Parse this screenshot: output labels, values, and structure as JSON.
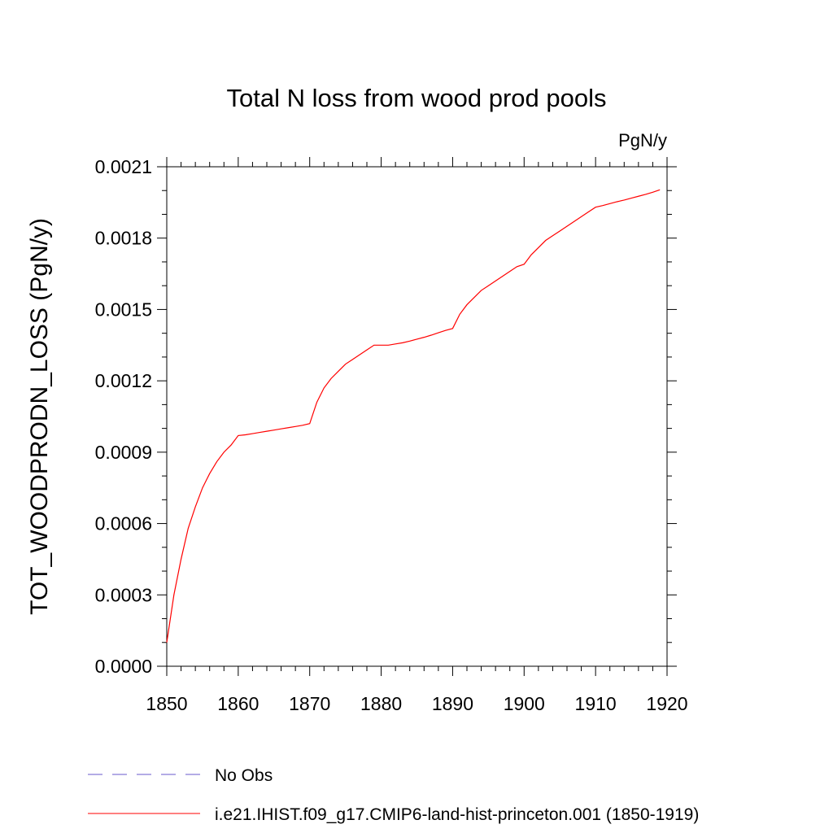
{
  "chart_data": {
    "type": "line",
    "title": "Total N loss from wood prod pools",
    "units_label": "PgN/y",
    "ylabel": "TOT_WOODPRODN_LOSS  (PgN/y)",
    "xlabel": "",
    "xlim": [
      1850,
      1920
    ],
    "ylim": [
      0,
      0.0021
    ],
    "x_ticks": [
      1850,
      1860,
      1870,
      1880,
      1890,
      1900,
      1910,
      1920
    ],
    "y_ticks": [
      "0.0000",
      "0.0003",
      "0.0006",
      "0.0009",
      "0.0012",
      "0.0015",
      "0.0018",
      "0.0021"
    ],
    "grid": false,
    "legend_position": "bottom",
    "legend": [
      {
        "label": "No Obs",
        "color": "#6a5acd",
        "style": "dashed"
      },
      {
        "label": "i.e21.IHIST.f09_g17.CMIP6-land-hist-princeton.001 (1850-1919)",
        "color": "#ff0000",
        "style": "solid"
      }
    ],
    "series": [
      {
        "name": "i.e21.IHIST.f09_g17.CMIP6-land-hist-princeton.001 (1850-1919)",
        "color": "#ff0000",
        "x": [
          1850,
          1851,
          1852,
          1853,
          1854,
          1855,
          1856,
          1857,
          1858,
          1859,
          1860,
          1861,
          1862,
          1863,
          1864,
          1865,
          1866,
          1867,
          1868,
          1869,
          1870,
          1871,
          1872,
          1873,
          1874,
          1875,
          1876,
          1877,
          1878,
          1879,
          1880,
          1881,
          1882,
          1883,
          1884,
          1885,
          1886,
          1887,
          1888,
          1889,
          1890,
          1891,
          1892,
          1893,
          1894,
          1895,
          1896,
          1897,
          1898,
          1899,
          1900,
          1901,
          1902,
          1903,
          1904,
          1905,
          1906,
          1907,
          1908,
          1909,
          1910,
          1911,
          1912,
          1913,
          1914,
          1915,
          1916,
          1917,
          1918,
          1919
        ],
        "values": [
          0.0001,
          0.0003,
          0.00045,
          0.00058,
          0.00067,
          0.00075,
          0.00081,
          0.00086,
          0.0009,
          0.00093,
          0.00097,
          0.000973,
          0.000978,
          0.000983,
          0.000988,
          0.000993,
          0.000998,
          0.001003,
          0.001008,
          0.001013,
          0.00102,
          0.00111,
          0.00117,
          0.00121,
          0.00124,
          0.00127,
          0.00129,
          0.00131,
          0.00133,
          0.00135,
          0.00135,
          0.00135,
          0.001355,
          0.00136,
          0.001367,
          0.001375,
          0.001383,
          0.001392,
          0.001402,
          0.001412,
          0.00142,
          0.00148,
          0.00152,
          0.00155,
          0.00158,
          0.0016,
          0.00162,
          0.00164,
          0.00166,
          0.00168,
          0.00169,
          0.00173,
          0.00176,
          0.00179,
          0.00181,
          0.00183,
          0.00185,
          0.00187,
          0.00189,
          0.00191,
          0.00193,
          0.001937,
          0.001945,
          0.001953,
          0.00196,
          0.001968,
          0.001976,
          0.001984,
          0.001993,
          0.002003
        ]
      }
    ]
  }
}
